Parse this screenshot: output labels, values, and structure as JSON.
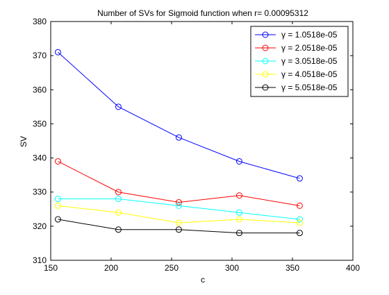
{
  "chart_data": {
    "type": "line",
    "title": "Number of SVs for Sigmoid function when r= 0.00095312",
    "xlabel": "c",
    "ylabel": "SV",
    "xlim": [
      150,
      400
    ],
    "ylim": [
      310,
      380
    ],
    "xticks": [
      150,
      200,
      250,
      300,
      350,
      400
    ],
    "yticks": [
      310,
      320,
      330,
      340,
      350,
      360,
      370,
      380
    ],
    "grid": false,
    "legend_position": "top-right",
    "x": [
      156,
      206,
      256,
      306,
      356
    ],
    "series": [
      {
        "name": "γ = 1.0518e-05",
        "color": "#0000ff",
        "values": [
          371,
          355,
          346,
          339,
          334
        ]
      },
      {
        "name": "γ = 2.0518e-05",
        "color": "#ff0000",
        "values": [
          339,
          330,
          327,
          329,
          326
        ]
      },
      {
        "name": "γ = 3.0518e-05",
        "color": "#00ffff",
        "values": [
          328,
          328,
          326,
          324,
          322
        ]
      },
      {
        "name": "γ = 4.0518e-05",
        "color": "#ffff00",
        "values": [
          326,
          324,
          321,
          322,
          321
        ]
      },
      {
        "name": "γ = 5.0518e-05",
        "color": "#000000",
        "values": [
          322,
          319,
          319,
          318,
          318
        ]
      }
    ]
  }
}
